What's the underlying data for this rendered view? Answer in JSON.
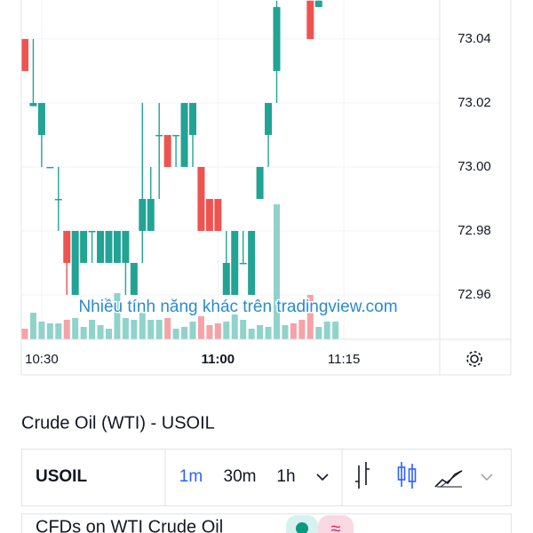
{
  "chart_data": {
    "type": "candlestick",
    "categories": [
      null,
      null,
      "10:30",
      null,
      null,
      null,
      null,
      null,
      null,
      null,
      null,
      null,
      null,
      null,
      null,
      null,
      null,
      null,
      null,
      null,
      null,
      null,
      null,
      "11:00",
      null,
      null,
      null,
      null,
      null,
      null,
      null,
      null,
      null,
      null,
      null,
      null,
      null,
      null,
      "11:15"
    ],
    "open": [
      73.04,
      73.019,
      73.01,
      73.0,
      72.99,
      72.98,
      72.96,
      72.97,
      72.98,
      72.97,
      72.97,
      72.97,
      72.97,
      72.96,
      72.98,
      72.98,
      73.01,
      73.01,
      73.01,
      73.0,
      73.01,
      73.0,
      72.99,
      72.99,
      72.96,
      72.96,
      72.97,
      72.96,
      72.99,
      73.01,
      73.03,
      null,
      null,
      null,
      73.052,
      73.05,
      null,
      null,
      null
    ],
    "high": [
      73.04,
      73.04,
      73.02,
      73.0,
      73.0,
      72.98,
      72.98,
      72.98,
      72.98,
      72.98,
      72.98,
      72.98,
      72.98,
      72.97,
      73.02,
      73.0,
      73.02,
      73.01,
      73.01,
      73.02,
      73.02,
      73.0,
      72.99,
      72.99,
      72.98,
      72.98,
      72.98,
      72.98,
      73.0,
      73.02,
      73.052,
      null,
      null,
      null,
      73.052,
      73.052,
      null,
      null,
      null
    ],
    "low": [
      73.03,
      73.019,
      73.0,
      73.0,
      72.98,
      72.96,
      72.96,
      72.97,
      72.97,
      72.97,
      72.97,
      72.97,
      72.96,
      72.96,
      72.97,
      72.98,
      72.99,
      73.0,
      73.0,
      73.0,
      73.0,
      72.98,
      72.98,
      72.98,
      72.96,
      72.96,
      72.97,
      72.96,
      72.99,
      73.0,
      73.02,
      null,
      null,
      null,
      73.04,
      73.05,
      null,
      null,
      null
    ],
    "close": [
      73.03,
      73.02,
      73.02,
      73.0,
      72.99,
      72.97,
      72.98,
      72.98,
      72.98,
      72.98,
      72.98,
      72.98,
      72.98,
      72.97,
      72.99,
      72.99,
      73.01,
      73.0,
      73.01,
      73.02,
      73.02,
      72.98,
      72.98,
      72.98,
      72.97,
      72.98,
      72.97,
      72.98,
      73.0,
      73.02,
      73.05,
      null,
      null,
      null,
      73.04,
      73.052,
      null,
      null,
      null
    ],
    "volume": [
      12,
      30,
      20,
      18,
      18,
      22,
      24,
      14,
      22,
      16,
      12,
      52,
      24,
      22,
      30,
      22,
      22,
      24,
      12,
      14,
      20,
      26,
      16,
      18,
      20,
      28,
      22,
      12,
      16,
      14,
      152,
      16,
      18,
      22,
      50,
      14,
      20,
      20,
      null
    ],
    "volume_direction": [
      "down",
      "up",
      "up",
      "up",
      "up",
      "down",
      "up",
      "up",
      "up",
      "up",
      "up",
      "up",
      "up",
      "up",
      "up",
      "up",
      "up",
      "down",
      "up",
      "up",
      "up",
      "down",
      "down",
      "down",
      "up",
      "up",
      "up",
      "up",
      "up",
      "up",
      "up",
      "up",
      "down",
      "down",
      "down",
      "up",
      "up",
      "up",
      null
    ],
    "up_color": "#22a394",
    "down_color": "#ef5350",
    "up_volume_color": "#8fd3cb",
    "down_volume_color": "#f5a3a6",
    "ylim": [
      72.9461,
      73.0522
    ],
    "yticks": [
      72.96,
      72.98,
      {
        "value": 73,
        "label": "73.00"
      },
      73.02,
      73.04
    ],
    "grid": true,
    "watermark": "Nhiều tính năng khác trên tradingview.com"
  },
  "instrument_title": "Crude Oil (WTI) - USOIL",
  "toolbar": {
    "symbol": "USOIL",
    "intervals": [
      "1m",
      "30m",
      "1h"
    ],
    "active_interval": "1m"
  },
  "description": "CFDs on WTI Crude Oil",
  "badge_icon": "≈"
}
